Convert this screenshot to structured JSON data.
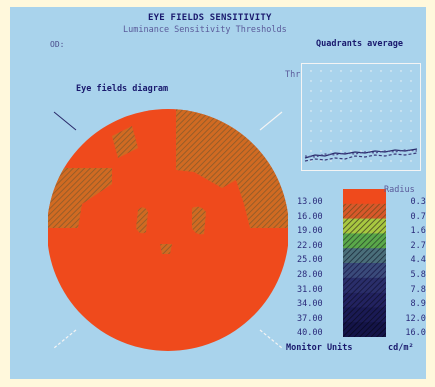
{
  "header": {
    "title": "EYE FIELDS SENSITIVITY",
    "subtitle": "Luminance Sensitivity Thresholds",
    "eye": "OD:"
  },
  "diagram": {
    "label": "Eye fields diagram",
    "colors": {
      "base": "#ef4a1c",
      "hatch_bg": "#d06a22",
      "hatch_line": "#8a5a2a"
    }
  },
  "quadrants": {
    "title": "Quadrants average",
    "axis_label": "Thr"
  },
  "legend": {
    "radius_title": "Radius",
    "units_left": "Monitor Units",
    "units_right": "cd/m²",
    "threshold_ticks": [
      "13.00",
      "16.00",
      "19.00",
      "22.00",
      "25.00",
      "28.00",
      "31.00",
      "34.00",
      "37.00",
      "40.00"
    ],
    "radius_ticks": [
      "0.32",
      "0.79",
      "1.60",
      "2.70",
      "4.40",
      "5.80",
      "7.80",
      "8.90",
      "12.00",
      "16.00"
    ],
    "bands": [
      {
        "color": "#ef4a1c",
        "hatch": "none"
      },
      {
        "color": "#d8582a",
        "hatch": "#7a4a1a"
      },
      {
        "color": "#a8c840",
        "hatch": "#444422"
      },
      {
        "color": "#5aa84a",
        "hatch": "#2a4a2a"
      },
      {
        "color": "#4a6e7a",
        "hatch": "#1a2a3a"
      },
      {
        "color": "#3a4a7a",
        "hatch": "#1a1a4a"
      },
      {
        "color": "#2a2e6a",
        "hatch": "#14143a"
      },
      {
        "color": "#222260",
        "hatch": "#10102e"
      },
      {
        "color": "#1a1a54",
        "hatch": "#0c0c26"
      },
      {
        "color": "#141448",
        "hatch": "#080820"
      }
    ]
  },
  "colors": {
    "screen_bg": "#a9d3ec",
    "frame_bg": "#fff8dc",
    "text_navy": "#1a1a6e"
  }
}
